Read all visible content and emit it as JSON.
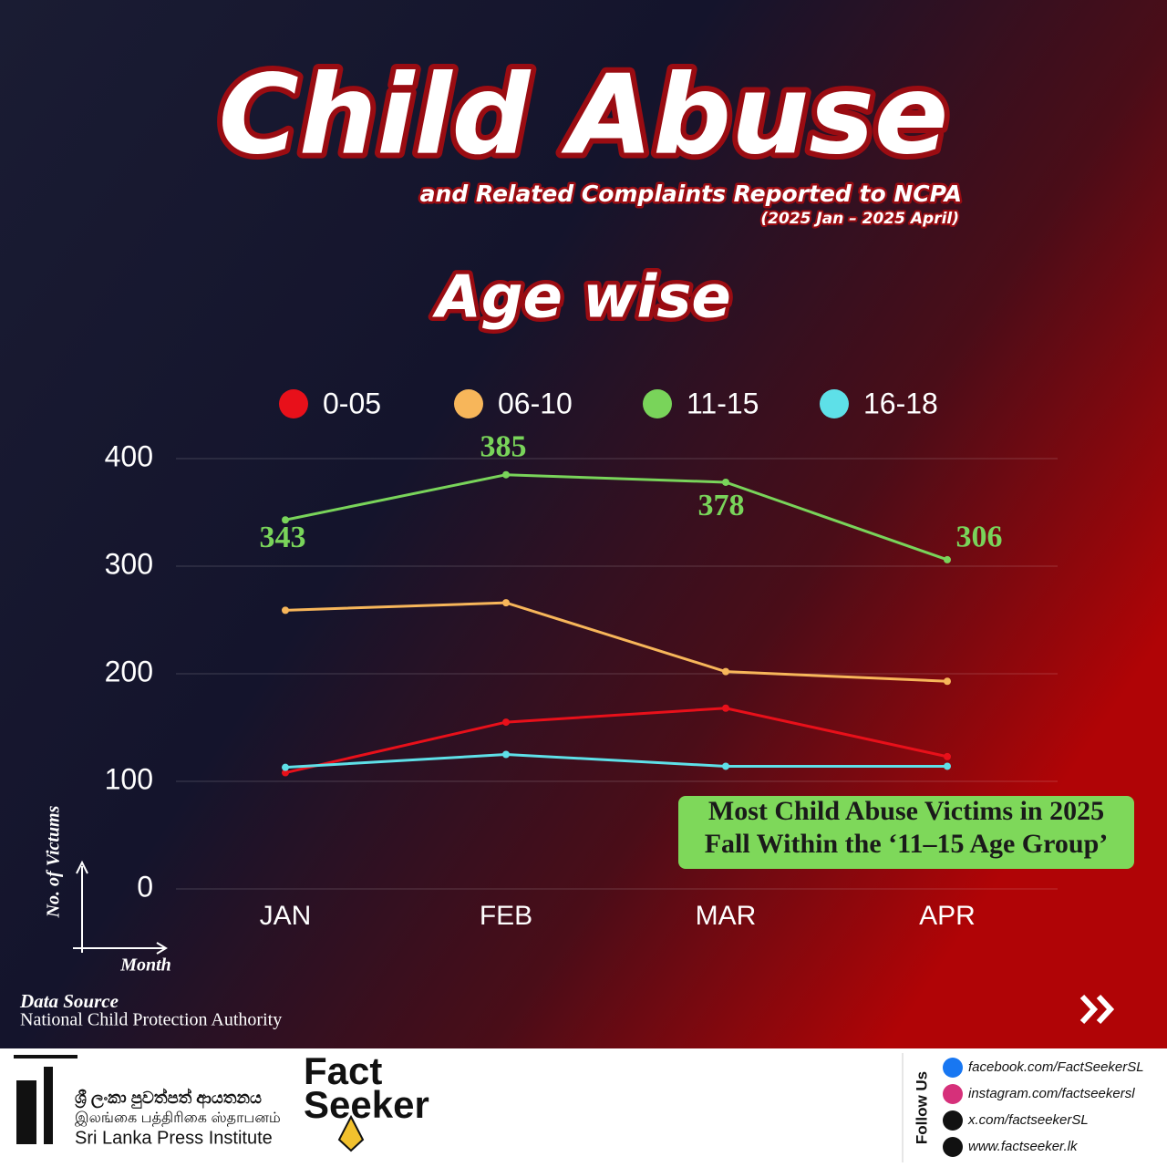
{
  "chart_data": {
    "type": "line",
    "title": "Child Abuse",
    "subtitle": "and Related Complaints Reported to NCPA",
    "period": "(2025 Jan – 2025 April)",
    "heading": "Age wise",
    "y_label": "No. of Victums",
    "x_label": "Month",
    "categories": [
      "JAN",
      "FEB",
      "MAR",
      "APR"
    ],
    "series": [
      {
        "name": "0-05",
        "color": "#e8101a",
        "values": [
          108,
          155,
          168,
          123
        ]
      },
      {
        "name": "06-10",
        "color": "#f7b65a",
        "values": [
          259,
          266,
          202,
          193
        ]
      },
      {
        "name": "11-15",
        "color": "#79d45a",
        "values": [
          343,
          385,
          378,
          306
        ]
      },
      {
        "name": "16-18",
        "color": "#5ee0e8",
        "values": [
          113,
          125,
          114,
          114
        ]
      }
    ],
    "labeled_series": 2,
    "ylim": [
      0,
      400
    ],
    "yticks": [
      0,
      100,
      200,
      300,
      400
    ],
    "grid": true,
    "annotation": [
      "Most Child Abuse Victims in 2025",
      "Fall Within the ‘11–15 Age Group’"
    ]
  },
  "source": {
    "label": "Data Source",
    "name": "National Child Protection Authority"
  },
  "footer": {
    "institute_si": "ශ්‍රී ලංකා පුවත්පත් ආයතනය",
    "institute_ta": "இலங்கை பத்திரிகை ஸ்தாபனம்",
    "institute_en": "Sri Lanka Press Institute",
    "brand": [
      "Fact",
      "Seeker"
    ],
    "follow": "Follow Us",
    "links": [
      "facebook.com/FactSeekerSL",
      "instagram.com/factseekersl",
      "x.com/factseekerSL",
      "www.factseeker.lk"
    ]
  }
}
